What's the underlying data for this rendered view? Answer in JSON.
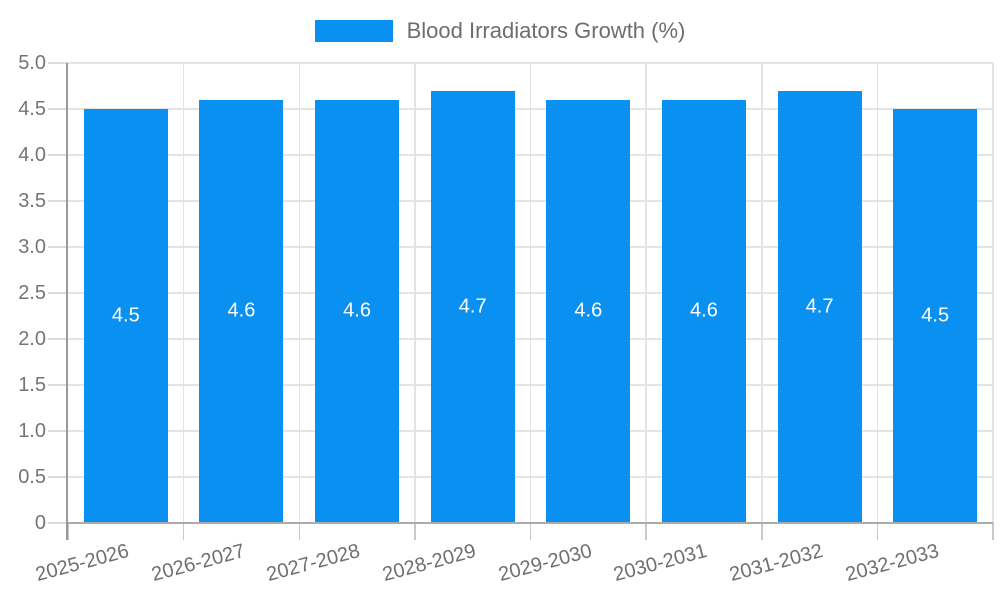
{
  "chart_data": {
    "type": "bar",
    "title": "Blood Irradiators Growth (%)",
    "categories": [
      "2025-2026",
      "2026-2027",
      "2027-2028",
      "2028-2029",
      "2029-2030",
      "2030-2031",
      "2031-2032",
      "2032-2033"
    ],
    "values": [
      4.5,
      4.6,
      4.6,
      4.7,
      4.6,
      4.6,
      4.7,
      4.5
    ],
    "value_labels": [
      "4.5",
      "4.6",
      "4.6",
      "4.7",
      "4.6",
      "4.6",
      "4.7",
      "4.5"
    ],
    "xlabel": "",
    "ylabel": "",
    "ylim": [
      0,
      5
    ],
    "ytick_step": 0.5,
    "ytick_labels": [
      "0",
      "0.5",
      "1.0",
      "1.5",
      "2.0",
      "2.5",
      "3.0",
      "3.5",
      "4.0",
      "4.5",
      "5.0"
    ],
    "grid": true,
    "legend_position": "top",
    "bar_color": "#0a90f0",
    "value_label_color": "#ffffff",
    "axis_text_color": "#757575",
    "gridline_color": "#e4e4e4"
  }
}
